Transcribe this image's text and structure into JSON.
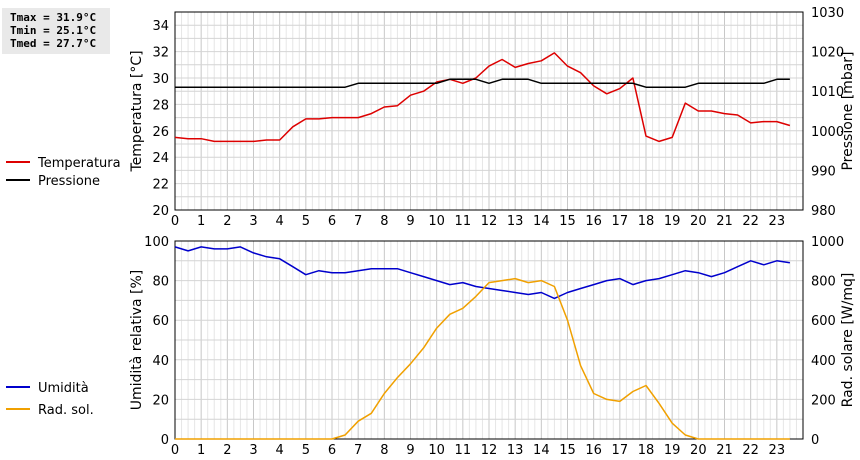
{
  "stats": {
    "tmax": "Tmax = 31.9°C",
    "tmin": "Tmin = 25.1°C",
    "tmed": "Tmed = 27.7°C"
  },
  "chart_data": [
    {
      "type": "line",
      "x_ticks": [
        "0",
        "1",
        "2",
        "3",
        "4",
        "5",
        "6",
        "7",
        "8",
        "9",
        "10",
        "11",
        "12",
        "13",
        "14",
        "15",
        "16",
        "17",
        "18",
        "19",
        "20",
        "21",
        "22",
        "23"
      ],
      "x": [
        0,
        0.5,
        1,
        1.5,
        2,
        2.5,
        3,
        3.5,
        4,
        4.5,
        5,
        5.5,
        6,
        6.5,
        7,
        7.5,
        8,
        8.5,
        9,
        9.5,
        10,
        10.5,
        11,
        11.5,
        12,
        12.5,
        13,
        13.5,
        14,
        14.5,
        15,
        15.5,
        16,
        16.5,
        17,
        17.5,
        18,
        18.5,
        19,
        19.5,
        20,
        20.5,
        21,
        21.5,
        22,
        22.5,
        23,
        23.5
      ],
      "xlim": [
        0,
        24
      ],
      "grid": true,
      "y_left": {
        "label": "Temperatura [°C]",
        "lim": [
          20,
          35
        ],
        "ticks": [
          "20",
          "22",
          "24",
          "26",
          "28",
          "30",
          "32",
          "34"
        ]
      },
      "y_right": {
        "label": "Pressione [mbar]",
        "lim": [
          980,
          1030
        ],
        "ticks": [
          "980",
          "990",
          "1000",
          "1010",
          "1020",
          "1030"
        ]
      },
      "series": [
        {
          "name": "Temperatura",
          "color": "#dd0000",
          "axis": "left",
          "values": [
            25.5,
            25.4,
            25.4,
            25.2,
            25.2,
            25.2,
            25.2,
            25.3,
            25.3,
            26.3,
            26.9,
            26.9,
            27.0,
            27.0,
            27.0,
            27.3,
            27.8,
            27.9,
            28.7,
            29.0,
            29.7,
            29.9,
            29.6,
            30.0,
            30.9,
            31.4,
            30.8,
            31.1,
            31.3,
            31.9,
            30.9,
            30.4,
            29.4,
            28.8,
            29.2,
            30.0,
            25.6,
            25.2,
            25.5,
            28.1,
            27.5,
            27.5,
            27.3,
            27.2,
            26.6,
            26.7,
            26.7,
            26.4
          ]
        },
        {
          "name": "Pressione",
          "color": "#000000",
          "axis": "right",
          "values": [
            1011,
            1011,
            1011,
            1011,
            1011,
            1011,
            1011,
            1011,
            1011,
            1011,
            1011,
            1011,
            1011,
            1011,
            1012,
            1012,
            1012,
            1012,
            1012,
            1012,
            1012,
            1013,
            1013,
            1013,
            1012,
            1013,
            1013,
            1013,
            1012,
            1012,
            1012,
            1012,
            1012,
            1012,
            1012,
            1012,
            1011,
            1011,
            1011,
            1011,
            1012,
            1012,
            1012,
            1012,
            1012,
            1012,
            1013,
            1013
          ]
        }
      ]
    },
    {
      "type": "line",
      "x_ticks": [
        "0",
        "1",
        "2",
        "3",
        "4",
        "5",
        "6",
        "7",
        "8",
        "9",
        "10",
        "11",
        "12",
        "13",
        "14",
        "15",
        "16",
        "17",
        "18",
        "19",
        "20",
        "21",
        "22",
        "23"
      ],
      "x": [
        0,
        0.5,
        1,
        1.5,
        2,
        2.5,
        3,
        3.5,
        4,
        4.5,
        5,
        5.5,
        6,
        6.5,
        7,
        7.5,
        8,
        8.5,
        9,
        9.5,
        10,
        10.5,
        11,
        11.5,
        12,
        12.5,
        13,
        13.5,
        14,
        14.5,
        15,
        15.5,
        16,
        16.5,
        17,
        17.5,
        18,
        18.5,
        19,
        19.5,
        20,
        20.5,
        21,
        21.5,
        22,
        22.5,
        23,
        23.5
      ],
      "xlim": [
        0,
        24
      ],
      "grid": true,
      "y_left": {
        "label": "Umidità relativa [%]",
        "lim": [
          0,
          100
        ],
        "ticks": [
          "0",
          "20",
          "40",
          "60",
          "80",
          "100"
        ]
      },
      "y_right": {
        "label": "Rad. solare [W/mq]",
        "lim": [
          0,
          1000
        ],
        "ticks": [
          "0",
          "200",
          "400",
          "600",
          "800",
          "1000"
        ]
      },
      "series": [
        {
          "name": "Umidità",
          "color": "#0000cc",
          "axis": "left",
          "values": [
            97,
            95,
            97,
            96,
            96,
            97,
            94,
            92,
            91,
            87,
            83,
            85,
            84,
            84,
            85,
            86,
            86,
            86,
            84,
            82,
            80,
            78,
            79,
            77,
            76,
            75,
            74,
            73,
            74,
            71,
            74,
            76,
            78,
            80,
            81,
            78,
            80,
            81,
            83,
            85,
            84,
            82,
            84,
            87,
            90,
            88,
            90,
            89
          ]
        },
        {
          "name": "Rad. sol.",
          "color": "#f0a000",
          "axis": "right",
          "values": [
            0,
            0,
            0,
            0,
            0,
            0,
            0,
            0,
            0,
            0,
            0,
            0,
            0,
            20,
            90,
            130,
            230,
            310,
            380,
            460,
            560,
            630,
            660,
            720,
            790,
            800,
            810,
            790,
            800,
            770,
            600,
            370,
            230,
            200,
            190,
            240,
            270,
            180,
            80,
            20,
            0,
            0,
            0,
            0,
            0,
            0,
            0,
            0
          ]
        }
      ]
    }
  ]
}
